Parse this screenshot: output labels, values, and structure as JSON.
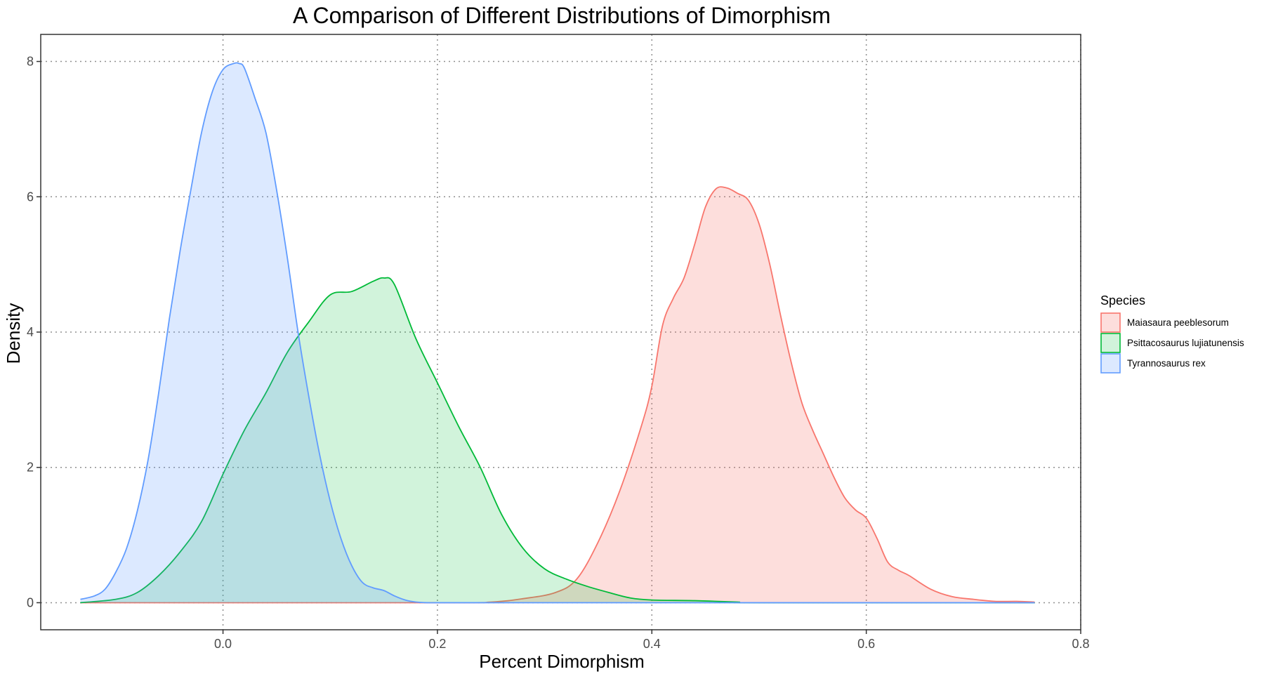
{
  "chart_data": {
    "type": "area",
    "title": "A Comparison of Different Distributions of Dimorphism",
    "xlabel": "Percent Dimorphism",
    "ylabel": "Density",
    "xlim": [
      -0.17,
      0.8
    ],
    "ylim": [
      -0.4,
      8.4
    ],
    "x_ticks": [
      {
        "value": 0.0,
        "label": "0.0"
      },
      {
        "value": 0.2,
        "label": "0.2"
      },
      {
        "value": 0.4,
        "label": "0.4"
      },
      {
        "value": 0.6,
        "label": "0.6"
      },
      {
        "value": 0.8,
        "label": "0.8"
      }
    ],
    "y_ticks": [
      {
        "value": 0,
        "label": "0"
      },
      {
        "value": 2,
        "label": "2"
      },
      {
        "value": 4,
        "label": "4"
      },
      {
        "value": 6,
        "label": "6"
      },
      {
        "value": 8,
        "label": "8"
      }
    ],
    "grid": true,
    "grid_style": "dotted",
    "legend": {
      "title": "Species",
      "position": "right"
    },
    "series": [
      {
        "name": "Maiasaura peeblesorum",
        "line_color": "#F8766D",
        "fill_color": "#F8766D",
        "fill_opacity": 0.24,
        "x": [
          -0.133,
          0.2,
          0.25,
          0.28,
          0.31,
          0.33,
          0.35,
          0.37,
          0.39,
          0.4,
          0.41,
          0.42,
          0.43,
          0.44,
          0.45,
          0.46,
          0.47,
          0.48,
          0.49,
          0.5,
          0.51,
          0.52,
          0.53,
          0.54,
          0.55,
          0.56,
          0.57,
          0.58,
          0.59,
          0.6,
          0.61,
          0.62,
          0.63,
          0.64,
          0.66,
          0.68,
          0.7,
          0.72,
          0.74,
          0.757
        ],
        "y": [
          0.0,
          0.0,
          0.01,
          0.06,
          0.15,
          0.35,
          0.9,
          1.65,
          2.6,
          3.2,
          4.1,
          4.5,
          4.8,
          5.3,
          5.85,
          6.12,
          6.13,
          6.05,
          5.95,
          5.6,
          5.0,
          4.25,
          3.55,
          2.95,
          2.55,
          2.2,
          1.85,
          1.55,
          1.37,
          1.25,
          0.95,
          0.6,
          0.48,
          0.4,
          0.2,
          0.09,
          0.05,
          0.02,
          0.02,
          0.01
        ]
      },
      {
        "name": "Psittacosaurus lujiatunensis",
        "line_color": "#00BA38",
        "fill_color": "#00BA38",
        "fill_opacity": 0.18,
        "x": [
          -0.133,
          -0.1,
          -0.08,
          -0.06,
          -0.04,
          -0.02,
          0.0,
          0.02,
          0.04,
          0.06,
          0.08,
          0.1,
          0.12,
          0.14,
          0.15,
          0.16,
          0.18,
          0.2,
          0.22,
          0.24,
          0.26,
          0.28,
          0.3,
          0.32,
          0.34,
          0.36,
          0.38,
          0.4,
          0.44,
          0.48,
          0.5,
          0.757
        ],
        "y": [
          0.0,
          0.05,
          0.15,
          0.4,
          0.75,
          1.2,
          1.9,
          2.55,
          3.1,
          3.7,
          4.15,
          4.55,
          4.6,
          4.75,
          4.8,
          4.7,
          3.9,
          3.25,
          2.6,
          2.0,
          1.3,
          0.8,
          0.5,
          0.35,
          0.24,
          0.15,
          0.07,
          0.04,
          0.03,
          0.01,
          0.0,
          0.0
        ]
      },
      {
        "name": "Tyrannosaurus rex",
        "line_color": "#619CFF",
        "fill_color": "#619CFF",
        "fill_opacity": 0.22,
        "x": [
          -0.133,
          -0.12,
          -0.11,
          -0.1,
          -0.09,
          -0.08,
          -0.07,
          -0.06,
          -0.05,
          -0.04,
          -0.03,
          -0.02,
          -0.01,
          0.0,
          0.01,
          0.015,
          0.02,
          0.03,
          0.04,
          0.05,
          0.06,
          0.07,
          0.08,
          0.09,
          0.1,
          0.11,
          0.12,
          0.13,
          0.14,
          0.15,
          0.16,
          0.17,
          0.18,
          0.19,
          0.2,
          0.22,
          0.25,
          0.757
        ],
        "y": [
          0.05,
          0.1,
          0.2,
          0.45,
          0.8,
          1.35,
          2.1,
          3.1,
          4.2,
          5.2,
          6.1,
          6.95,
          7.55,
          7.88,
          7.97,
          7.97,
          7.9,
          7.45,
          6.95,
          6.1,
          5.1,
          4.0,
          3.05,
          2.2,
          1.5,
          0.95,
          0.55,
          0.3,
          0.22,
          0.18,
          0.1,
          0.04,
          0.01,
          0.0,
          0.0,
          0.0,
          0.0,
          0.0
        ]
      }
    ]
  }
}
